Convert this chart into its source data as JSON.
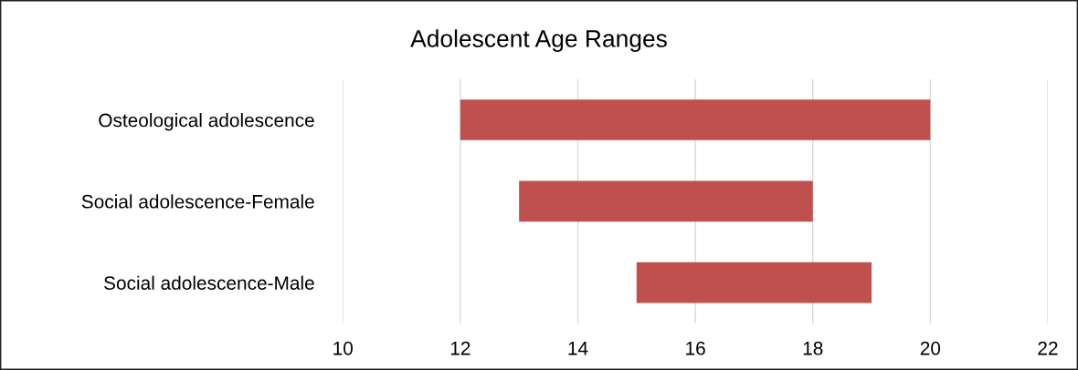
{
  "chart_data": {
    "type": "bar",
    "orientation": "horizontal",
    "title": "Adolescent Age Ranges",
    "categories": [
      "Osteological adolescence",
      "Social adolescence-Female",
      "Social adolescence-Male"
    ],
    "base": [
      12,
      13,
      15
    ],
    "values": [
      8,
      5,
      4
    ],
    "color": "#c0504d",
    "xlim": [
      10,
      22
    ],
    "xticks": [
      10,
      12,
      14,
      16,
      18,
      20,
      22
    ],
    "grid": "x",
    "legend": false
  }
}
